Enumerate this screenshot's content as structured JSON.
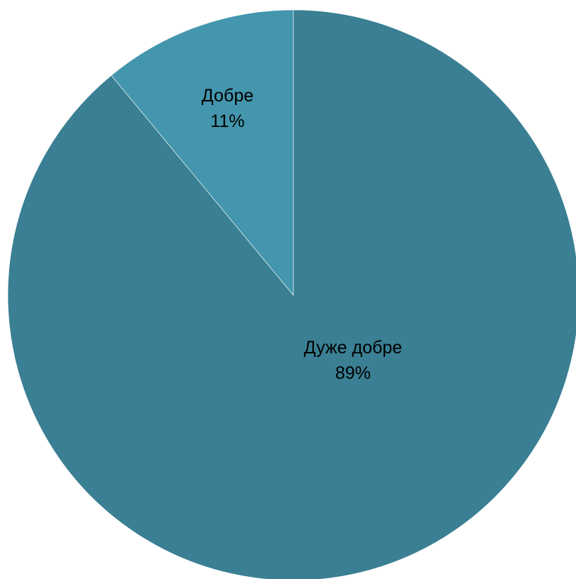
{
  "chart_data": {
    "type": "pie",
    "title": "",
    "slices": [
      {
        "name": "Дуже добре",
        "label": "89%",
        "value": 89,
        "color": "#3A7F93"
      },
      {
        "name": "Добре",
        "label": "11%",
        "value": 11,
        "color": "#4396AD"
      }
    ],
    "start_angle_deg": 0,
    "direction": "clockwise",
    "legend": "none"
  }
}
